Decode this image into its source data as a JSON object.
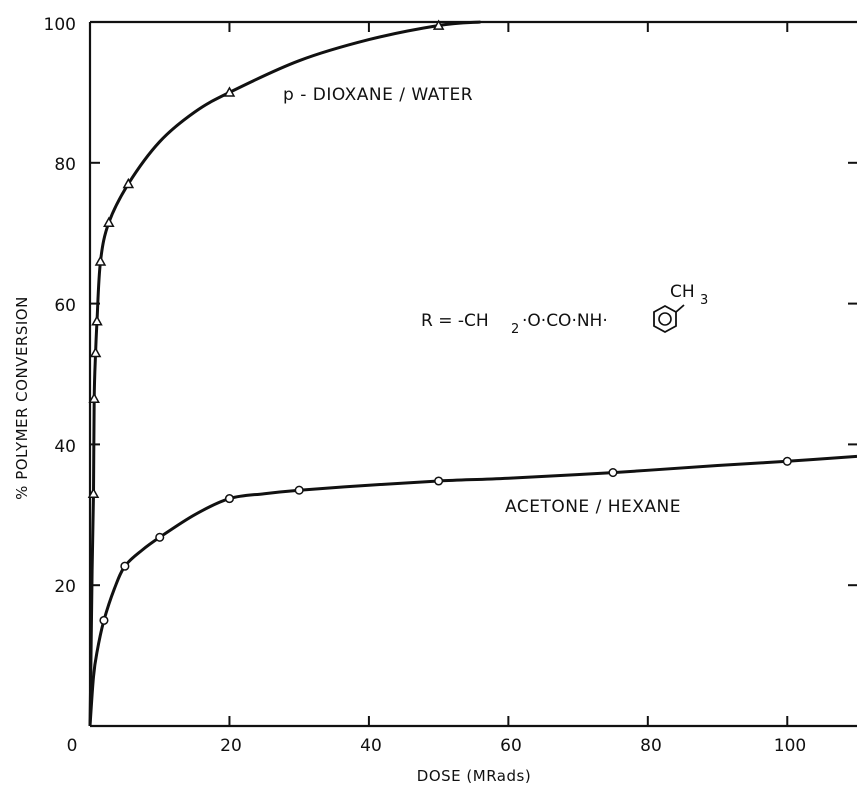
{
  "chart_data": {
    "type": "line",
    "xlabel": "DOSE (MRads)",
    "ylabel": "% POLYMER CONVERSION",
    "xlim": [
      0,
      110
    ],
    "ylim": [
      0,
      100
    ],
    "x_ticks": [
      "0",
      "20",
      "40",
      "60",
      "80",
      "100"
    ],
    "y_ticks": [
      "20",
      "40",
      "60",
      "80",
      "100"
    ],
    "grid": false,
    "series": [
      {
        "name": "p-DIOXANE / WATER",
        "marker": "triangle",
        "points": [
          [
            0.5,
            33
          ],
          [
            0.6,
            46.5
          ],
          [
            0.8,
            53
          ],
          [
            1,
            57.5
          ],
          [
            1.5,
            66
          ],
          [
            2.7,
            71.5
          ],
          [
            5.5,
            77
          ],
          [
            20,
            90
          ],
          [
            50,
            99.5
          ]
        ],
        "curve": [
          [
            0,
            0
          ],
          [
            0.15,
            10
          ],
          [
            0.3,
            22
          ],
          [
            0.5,
            33
          ],
          [
            0.6,
            46.5
          ],
          [
            0.8,
            53
          ],
          [
            1,
            57.5
          ],
          [
            1.5,
            66
          ],
          [
            2.7,
            71.5
          ],
          [
            5.5,
            77
          ],
          [
            10,
            83
          ],
          [
            15,
            87.2
          ],
          [
            20,
            90
          ],
          [
            30,
            94.5
          ],
          [
            40,
            97.5
          ],
          [
            50,
            99.5
          ],
          [
            56,
            100
          ]
        ]
      },
      {
        "name": "ACETONE / HEXANE",
        "marker": "circle",
        "points": [
          [
            2,
            15
          ],
          [
            5,
            22.7
          ],
          [
            10,
            26.8
          ],
          [
            20,
            32.3
          ],
          [
            30,
            33.5
          ],
          [
            50,
            34.8
          ],
          [
            75,
            36
          ],
          [
            100,
            37.6
          ]
        ],
        "curve": [
          [
            0,
            0
          ],
          [
            0.5,
            7
          ],
          [
            1,
            10.5
          ],
          [
            2,
            15
          ],
          [
            3.5,
            19.5
          ],
          [
            5,
            22.7
          ],
          [
            7.5,
            25
          ],
          [
            10,
            26.8
          ],
          [
            15,
            30
          ],
          [
            20,
            32.3
          ],
          [
            25,
            33
          ],
          [
            30,
            33.5
          ],
          [
            40,
            34.2
          ],
          [
            50,
            34.8
          ],
          [
            60,
            35.2
          ],
          [
            75,
            36
          ],
          [
            90,
            37
          ],
          [
            100,
            37.6
          ],
          [
            110,
            38.3
          ]
        ]
      }
    ],
    "annotations": {
      "dioxane_label": "p - DIOXANE / WATER",
      "acetone_label": "ACETONE / HEXANE",
      "formula_prefix": "R = -CH",
      "formula_sub2": "2",
      "formula_middle": "·O·CO·NH·",
      "formula_ch": "CH",
      "formula_sub3": "3"
    }
  }
}
